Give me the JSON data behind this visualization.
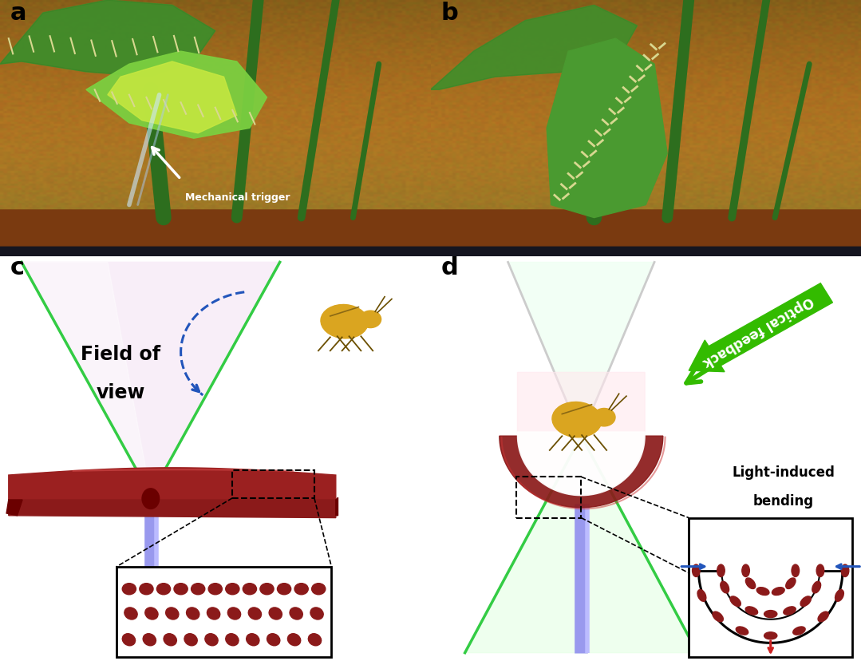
{
  "panel_label_fontsize": 22,
  "panel_label_color": "black",
  "bg_color": "white",
  "field_of_view_text": "Field of\nview",
  "mechanical_trigger_text": "Mechanical trigger",
  "optical_feedback_text": "Optical feedback",
  "light_induced_text": "Light-induced\nbending",
  "cone_green": "#33cc44",
  "cone_pink_fill": "#f8eef8",
  "cone_white_fill": "#f0fff0",
  "bar_dark_red": "#8B1A1A",
  "bar_mid_red": "#9B2020",
  "bar_light_red": "#b03030",
  "stem_blue": "#9999ee",
  "stem_highlight": "#bbbbff",
  "lc_color": "#8B1A1A",
  "arrow_blue": "#2255bb",
  "arrow_red": "#cc2222",
  "green_arrow_fill": "#33bb00",
  "photo_bg_a": "#9a7535",
  "photo_bg_b": "#9a7535",
  "photo_soil": "#151520",
  "photo_pot": "#8B4513",
  "photo_green_dark": "#2d6e1e",
  "photo_green_mid": "#4a9a30",
  "photo_green_light": "#7bcf40",
  "photo_yellow_green": "#c8e840"
}
